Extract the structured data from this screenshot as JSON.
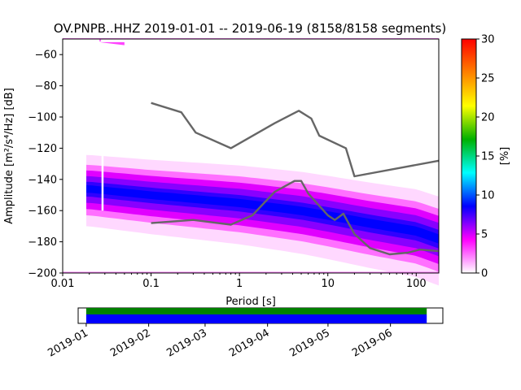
{
  "chart_data": {
    "type": "heatmap",
    "title": "OV.PNPB..HHZ   2019-01-01 -- 2019-06-19  (8158/8158 segments)",
    "xlabel": "Period [s]",
    "ylabel": "Amplitude [m²/s⁴/Hz] [dB]",
    "xscale": "log",
    "xlim": [
      0.01,
      180
    ],
    "ylim": [
      -200,
      -50
    ],
    "xticks": [
      {
        "value": 0.01,
        "label": "0.01"
      },
      {
        "value": 0.1,
        "label": "0.1"
      },
      {
        "value": 1,
        "label": "1"
      },
      {
        "value": 10,
        "label": "10"
      },
      {
        "value": 100,
        "label": "100"
      }
    ],
    "yticks": [
      -60,
      -80,
      -100,
      -120,
      -140,
      -160,
      -180,
      -200
    ],
    "colorbar": {
      "label": "[%]",
      "range": [
        0,
        30
      ],
      "ticks": [
        0,
        5,
        10,
        15,
        20,
        25,
        30
      ],
      "colors": [
        "#ffffff",
        "#ff00ff",
        "#0000ff",
        "#00ffff",
        "#00b000",
        "#ffff00",
        "#ff8000",
        "#ff0000"
      ]
    },
    "psd_band": {
      "period_start": 0.0185,
      "period_end": 180,
      "mode_db": [
        {
          "period": 0.02,
          "db": -146
        },
        {
          "period": 0.1,
          "db": -150
        },
        {
          "period": 1,
          "db": -155
        },
        {
          "period": 5,
          "db": -160
        },
        {
          "period": 10,
          "db": -163
        },
        {
          "period": 30,
          "db": -168
        },
        {
          "period": 100,
          "db": -173
        },
        {
          "period": 180,
          "db": -178
        }
      ]
    },
    "series": [
      {
        "name": "",
        "color": "#666666",
        "points": [
          {
            "x": 0.1,
            "y": -91
          },
          {
            "x": 0.22,
            "y": -97
          },
          {
            "x": 0.32,
            "y": -110
          },
          {
            "x": 0.8,
            "y": -120
          },
          {
            "x": 2.5,
            "y": -104
          },
          {
            "x": 4.0,
            "y": -98
          },
          {
            "x": 4.7,
            "y": -96
          },
          {
            "x": 6.5,
            "y": -101
          },
          {
            "x": 8.0,
            "y": -112
          },
          {
            "x": 16,
            "y": -120
          },
          {
            "x": 20,
            "y": -138
          },
          {
            "x": 180,
            "y": -128
          }
        ]
      },
      {
        "name": "",
        "color": "#666666",
        "points": [
          {
            "x": 0.1,
            "y": -168
          },
          {
            "x": 0.3,
            "y": -166
          },
          {
            "x": 0.8,
            "y": -169
          },
          {
            "x": 1.4,
            "y": -163
          },
          {
            "x": 2.5,
            "y": -148
          },
          {
            "x": 4.2,
            "y": -141
          },
          {
            "x": 5.0,
            "y": -141
          },
          {
            "x": 6.0,
            "y": -149
          },
          {
            "x": 10,
            "y": -163
          },
          {
            "x": 12,
            "y": -166
          },
          {
            "x": 15,
            "y": -162
          },
          {
            "x": 20,
            "y": -175
          },
          {
            "x": 30,
            "y": -184
          },
          {
            "x": 50,
            "y": -188
          },
          {
            "x": 80,
            "y": -187
          },
          {
            "x": 110,
            "y": -185
          },
          {
            "x": 180,
            "y": -186
          }
        ]
      }
    ],
    "data_availability": {
      "ticks": [
        "2019-01",
        "2019-02",
        "2019-03",
        "2019-04",
        "2019-05",
        "2019-06"
      ],
      "range": [
        "2018-12-28",
        "2019-06-27"
      ],
      "coverage": [
        "2019-01-01",
        "2019-06-19"
      ],
      "colors": {
        "processed": "#008000",
        "available": "#0000ff"
      }
    }
  }
}
